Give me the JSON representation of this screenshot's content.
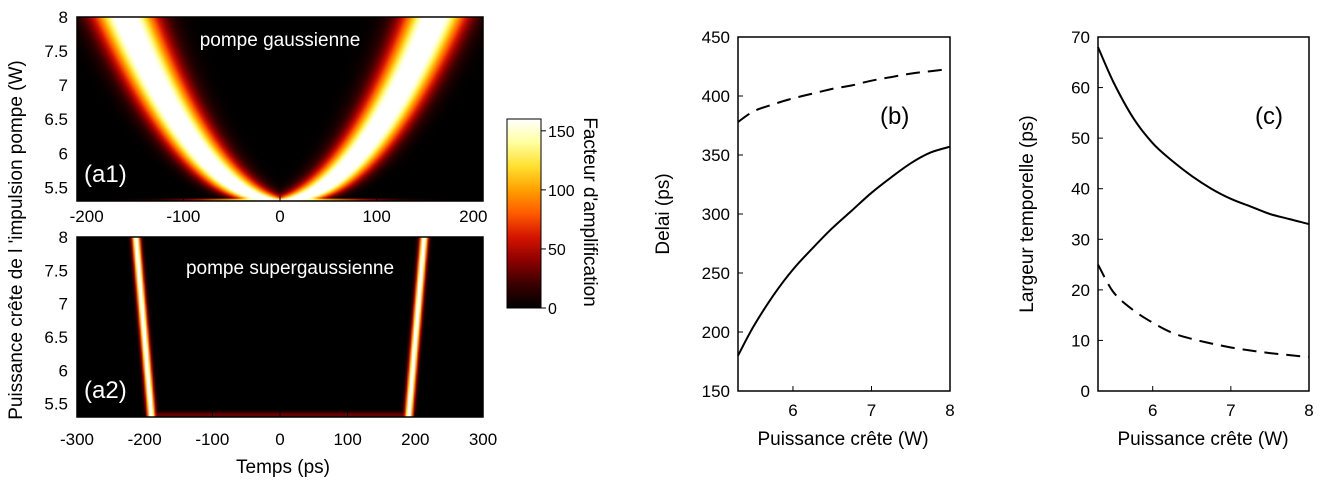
{
  "chart_data": [
    {
      "panel": "a1",
      "type": "heatmap",
      "label": "(a1)",
      "annotation": "pompe gaussienne",
      "x_ticks": [
        -200,
        -100,
        0,
        100,
        200
      ],
      "xlim": [
        -210,
        210
      ],
      "y_ticks": [
        5.5,
        6,
        6.5,
        7,
        7.5,
        8
      ],
      "ylim": [
        5.3,
        8
      ],
      "ridge": {
        "x_at_y_min": 0,
        "x_at_y_max": 160,
        "y_min": 5.3,
        "y_max": 8,
        "profile": "gaussian",
        "shape": "parabolic"
      }
    },
    {
      "panel": "a2",
      "type": "heatmap",
      "label": "(a2)",
      "annotation": "pompe supergaussienne",
      "x_ticks": [
        -300,
        -200,
        -100,
        0,
        100,
        200,
        300
      ],
      "xlim": [
        -300,
        300
      ],
      "y_ticks": [
        5.5,
        6,
        6.5,
        7,
        7.5,
        8
      ],
      "ylim": [
        5.3,
        8
      ],
      "xlabel": "Temps (ps)",
      "ridge": {
        "x_at_y_min": 190,
        "x_at_y_max": 213,
        "y_min": 5.3,
        "y_max": 8,
        "profile": "supergaussian"
      }
    },
    {
      "panel": "colorbar",
      "type": "colorbar",
      "label": "Facteur d'amplification",
      "ticks": [
        0,
        50,
        100,
        150
      ],
      "range": [
        0,
        160
      ],
      "colormap": [
        "#000000",
        "#3a0000",
        "#8c0000",
        "#d41400",
        "#ff5a00",
        "#ffa000",
        "#ffe030",
        "#ffffa0",
        "#ffffff"
      ]
    },
    {
      "panel": "b",
      "type": "line",
      "label": "(b)",
      "xlabel": "Puissance crête (W)",
      "ylabel": "Delai (ps)",
      "xlim": [
        5.3,
        8
      ],
      "ylim": [
        150,
        450
      ],
      "x_ticks": [
        6,
        7,
        8
      ],
      "y_ticks": [
        150,
        200,
        250,
        300,
        350,
        400,
        450
      ],
      "series": [
        {
          "style": "solid",
          "x": [
            5.3,
            5.5,
            5.75,
            6,
            6.25,
            6.5,
            6.75,
            7,
            7.25,
            7.5,
            7.75,
            8
          ],
          "y": [
            180,
            205,
            231,
            253,
            271,
            288,
            303,
            318,
            331,
            343,
            352,
            357
          ]
        },
        {
          "style": "dashed",
          "x": [
            5.3,
            5.5,
            5.75,
            6,
            6.25,
            6.5,
            6.75,
            7,
            7.25,
            7.5,
            7.75,
            8
          ],
          "y": [
            378,
            387,
            393,
            398,
            402,
            406,
            409,
            413,
            416,
            419,
            421,
            423
          ]
        }
      ]
    },
    {
      "panel": "c",
      "type": "line",
      "label": "(c)",
      "xlabel": "Puissance crête (W)",
      "ylabel": "Largeur temporelle  (ps)",
      "xlim": [
        5.3,
        8
      ],
      "ylim": [
        0,
        70
      ],
      "x_ticks": [
        6,
        7,
        8
      ],
      "y_ticks": [
        0,
        10,
        20,
        30,
        40,
        50,
        60,
        70
      ],
      "series": [
        {
          "style": "solid",
          "x": [
            5.3,
            5.5,
            5.75,
            6,
            6.25,
            6.5,
            6.75,
            7,
            7.25,
            7.5,
            7.75,
            8
          ],
          "y": [
            68,
            61,
            54,
            49,
            45.5,
            42.5,
            40,
            38,
            36.5,
            35,
            34,
            33
          ]
        },
        {
          "style": "dashed",
          "x": [
            5.3,
            5.5,
            5.75,
            6,
            6.25,
            6.5,
            6.75,
            7,
            7.25,
            7.5,
            7.75,
            8
          ],
          "y": [
            25,
            19.5,
            16,
            13.5,
            11.5,
            10.3,
            9.4,
            8.6,
            8,
            7.5,
            7.1,
            6.7
          ]
        }
      ]
    }
  ],
  "shared_ylabel": "Puissance crête de l 'impulsion pompe  (W)",
  "colors": {
    "background": "#ffffff",
    "axes": "#000000",
    "line": "#000000",
    "map_text": "#ffffff"
  }
}
